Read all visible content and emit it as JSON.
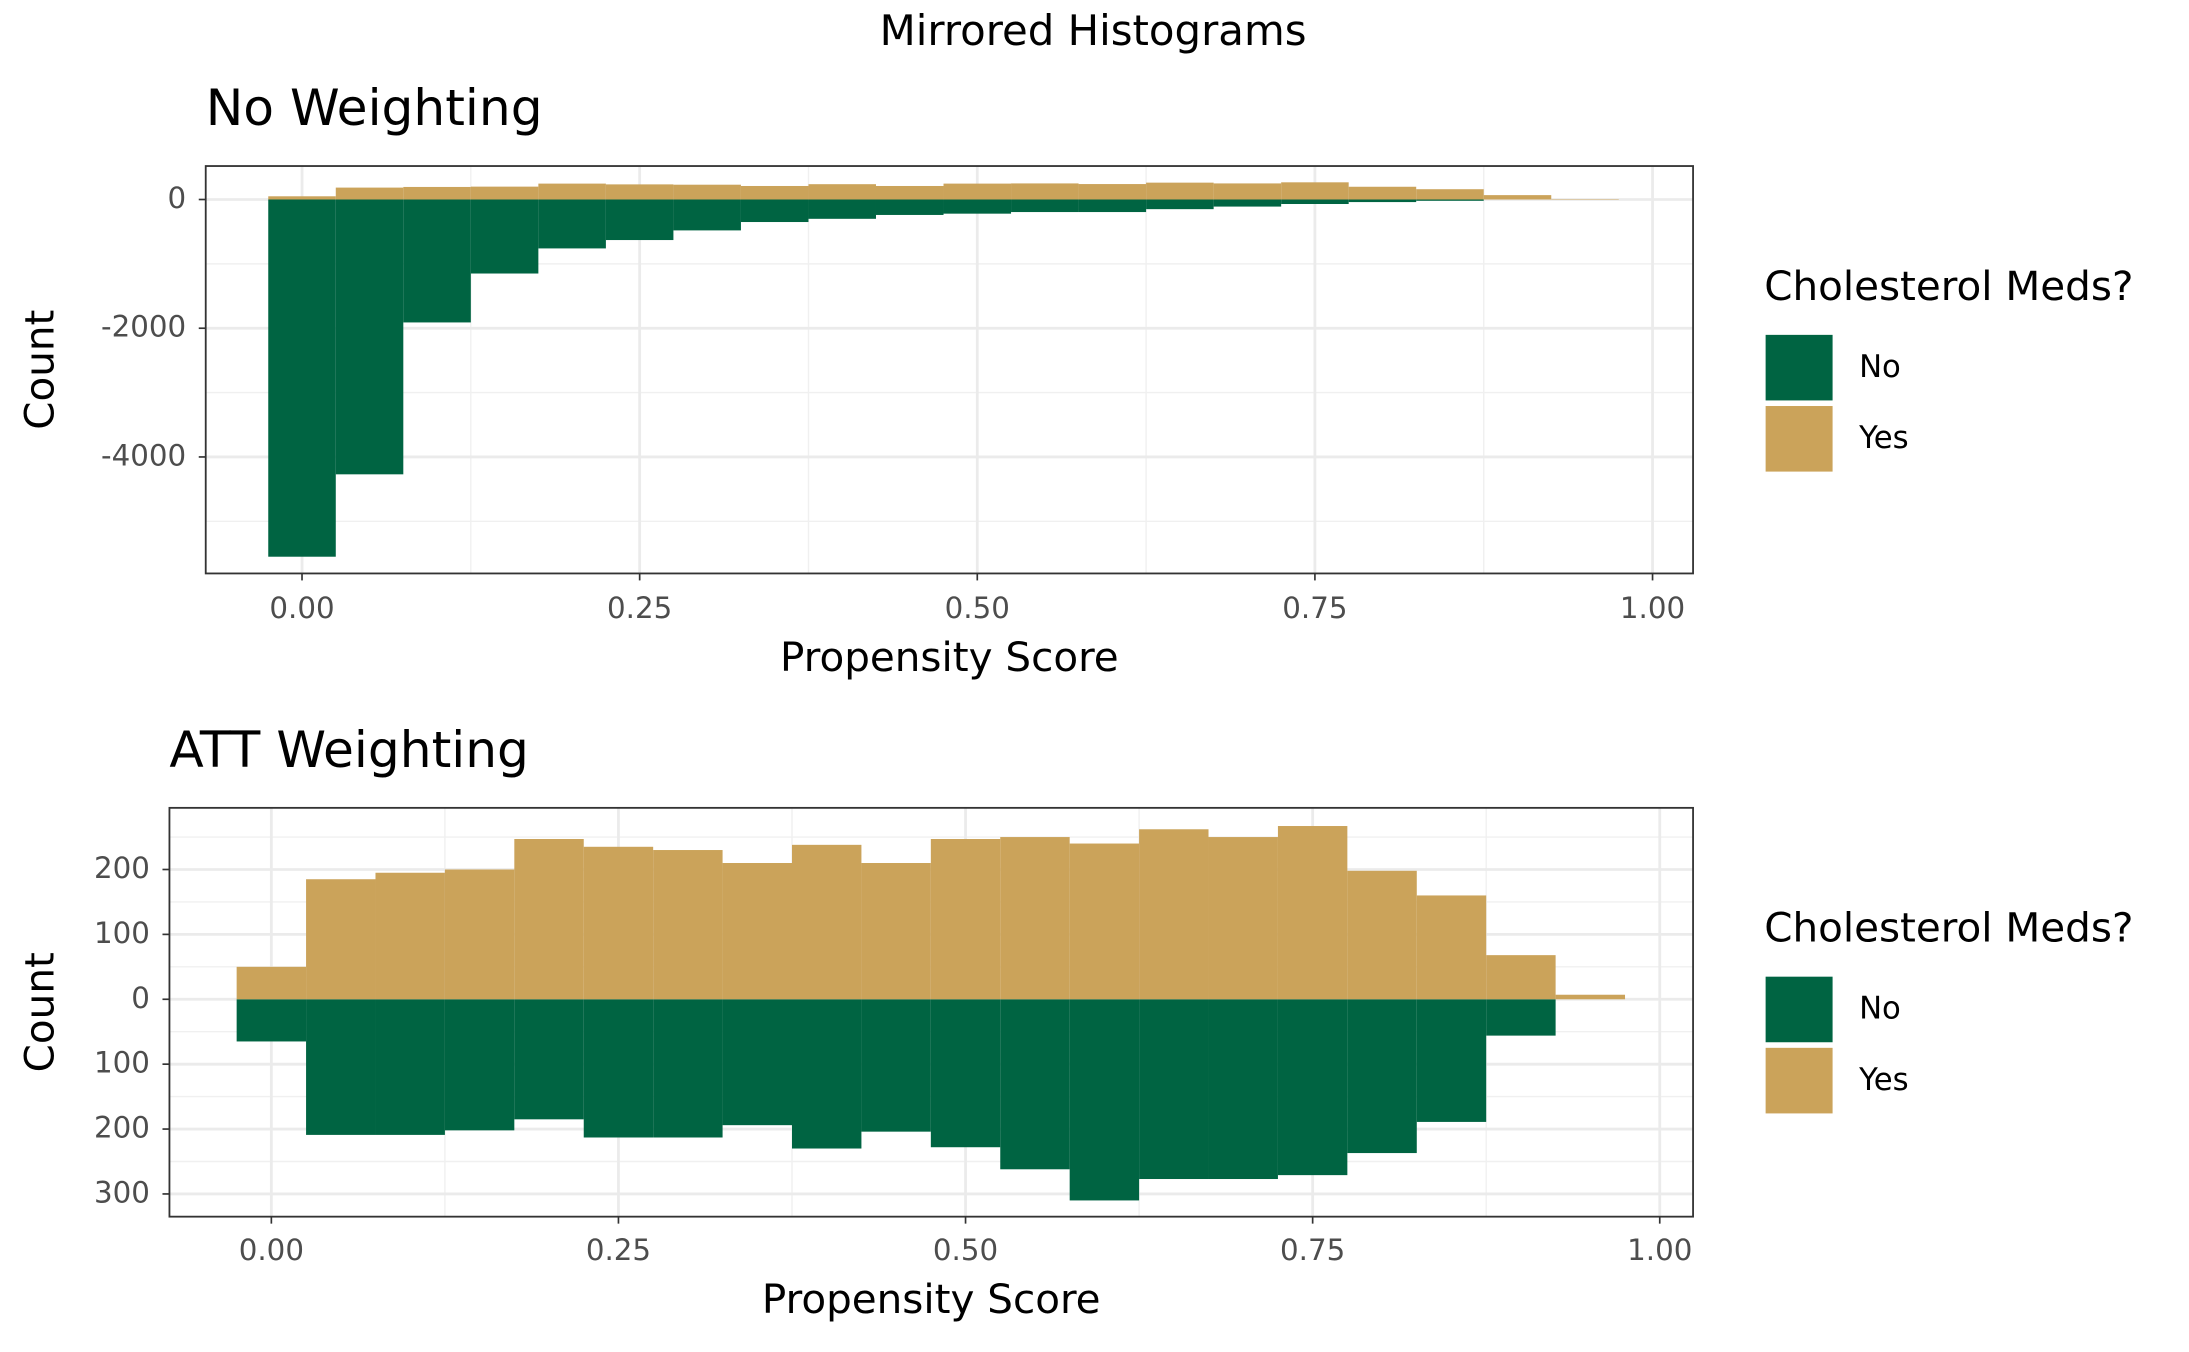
{
  "title": "Mirrored Histograms",
  "chart_data": [
    {
      "type": "histogram",
      "title": "No Weighting",
      "xlabel": "Propensity Score",
      "ylabel": "Count",
      "legend_title": "Cholesterol Meds?",
      "legend": "right",
      "grid": true,
      "bins": [
        -0.025,
        0.025,
        0.075,
        0.125,
        0.175,
        0.225,
        0.275,
        0.325,
        0.375,
        0.425,
        0.475,
        0.525,
        0.575,
        0.625,
        0.675,
        0.725,
        0.775,
        0.825,
        0.875,
        0.925,
        0.975
      ],
      "series": [
        {
          "name": "No",
          "color": "#006442",
          "values": [
            -5550,
            -4270,
            -1910,
            -1150,
            -760,
            -630,
            -480,
            -350,
            -300,
            -240,
            -220,
            -195,
            -195,
            -150,
            -110,
            -70,
            -40,
            -20,
            0,
            0
          ]
        },
        {
          "name": "Yes",
          "color": "#cba35a",
          "values": [
            50,
            185,
            195,
            200,
            247,
            235,
            230,
            210,
            238,
            210,
            247,
            250,
            240,
            262,
            250,
            267,
            198,
            160,
            68,
            7
          ]
        }
      ],
      "xlim": [
        -0.0713,
        1.03
      ],
      "ylim": [
        -5810,
        520
      ],
      "xticks": [
        {
          "value": 0,
          "label": "0.00"
        },
        {
          "value": 0.25,
          "label": "0.25"
        },
        {
          "value": 0.5,
          "label": "0.50"
        },
        {
          "value": 0.75,
          "label": "0.75"
        },
        {
          "value": 1,
          "label": "1.00"
        }
      ],
      "yticks": [
        -4000,
        -2000,
        0
      ]
    },
    {
      "type": "histogram",
      "title": "ATT Weighting",
      "xlabel": "Propensity Score",
      "ylabel": "Count",
      "legend_title": "Cholesterol Meds?",
      "legend": "right",
      "grid": true,
      "bins": [
        -0.025,
        0.025,
        0.075,
        0.125,
        0.175,
        0.225,
        0.275,
        0.325,
        0.375,
        0.425,
        0.475,
        0.525,
        0.575,
        0.625,
        0.675,
        0.725,
        0.775,
        0.825,
        0.875,
        0.925,
        0.975
      ],
      "series": [
        {
          "name": "No",
          "color": "#006442",
          "values": [
            -65,
            -209,
            -209,
            -202,
            -185,
            -213,
            -213,
            -194,
            -230,
            -204,
            -228,
            -262,
            -310,
            -277,
            -277,
            -271,
            -237,
            -189,
            -56,
            0
          ]
        },
        {
          "name": "Yes",
          "color": "#cba35a",
          "values": [
            50,
            185,
            195,
            200,
            247,
            235,
            230,
            210,
            238,
            210,
            247,
            250,
            240,
            262,
            250,
            267,
            198,
            160,
            68,
            7
          ]
        }
      ],
      "xlim": [
        -0.0734,
        1.024
      ],
      "ylim": [
        -335,
        295
      ],
      "xticks": [
        {
          "value": 0,
          "label": "0.00"
        },
        {
          "value": 0.25,
          "label": "0.25"
        },
        {
          "value": 0.5,
          "label": "0.50"
        },
        {
          "value": 0.75,
          "label": "0.75"
        },
        {
          "value": 1,
          "label": "1.00"
        }
      ],
      "yticks": [
        {
          "value": -300,
          "label": "300"
        },
        {
          "value": -200,
          "label": "200"
        },
        {
          "value": -100,
          "label": "100"
        },
        0,
        100,
        200
      ]
    }
  ]
}
